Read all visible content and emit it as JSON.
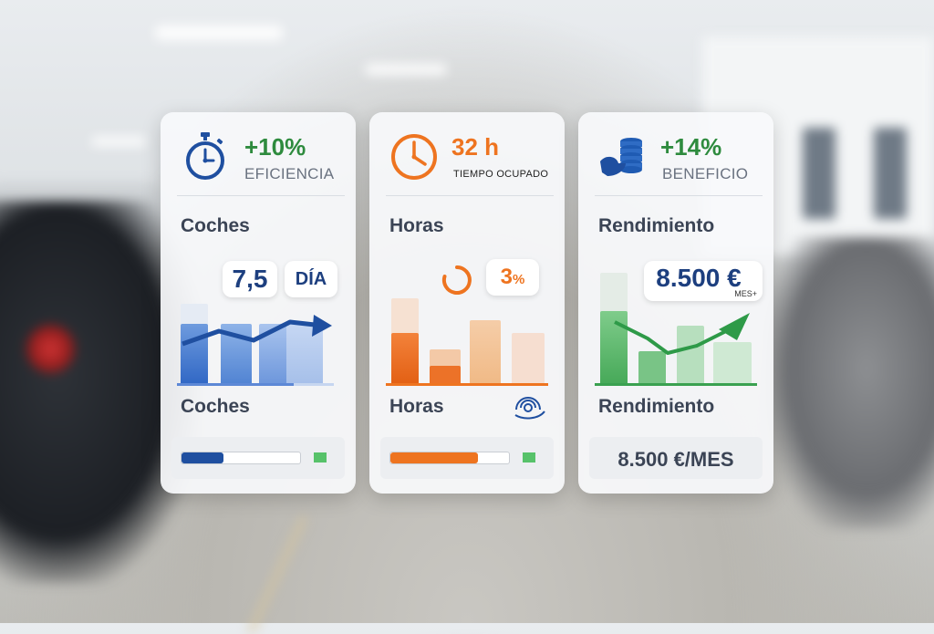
{
  "cards": [
    {
      "icon": "stopwatch-icon",
      "accent": "#1f5bb3",
      "headline": "+10%",
      "headline_color": "#2e8b3e",
      "subtitle": "EFICIENCIA",
      "section_title": "Coches",
      "kpi_value": "7,5",
      "kpi_unit": "DÍA",
      "footer_title": "Coches",
      "progress": 0.35
    },
    {
      "icon": "clock-icon",
      "accent": "#ee7420",
      "headline": "32 h",
      "headline_color": "#ee7420",
      "subtitle": "TIEMPO OCUPADO",
      "section_title": "Horas",
      "kpi_value": "3",
      "kpi_unit": "%",
      "footer_title": "Horas",
      "footer_icon": "nfc-scan-icon",
      "progress": 0.74
    },
    {
      "icon": "coins-hand-icon",
      "accent": "#2e9a48",
      "headline": "+14%",
      "headline_color": "#2e8b3e",
      "subtitle": "BENEFICIO",
      "section_title": "Rendimiento",
      "kpi_value": "8.500 €",
      "kpi_unit": "MES+",
      "footer_title": "Rendimiento",
      "footer_value": "8.500 €/MES"
    }
  ]
}
